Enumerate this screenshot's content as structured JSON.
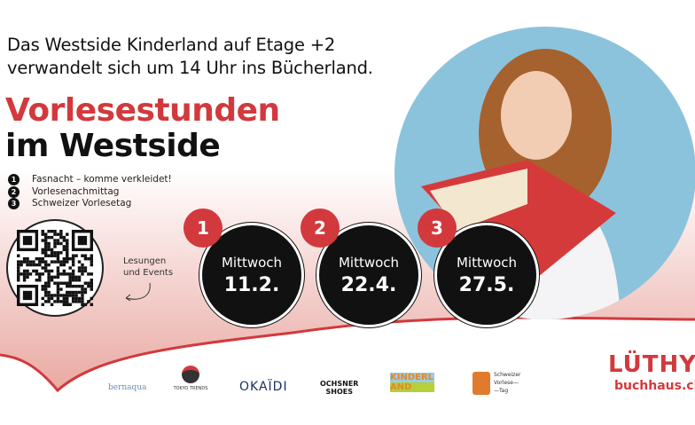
{
  "intro": {
    "line1": "Das Westside Kinderland auf Etage +2",
    "line2": "verwandelt sich um 14 Uhr ins Bücherland."
  },
  "title": {
    "line1": "Vorlesestunden",
    "line2": "im Westside"
  },
  "events": [
    {
      "num": "1",
      "label": "Fasnacht – komme verkleidet!",
      "weekday": "Mittwoch",
      "date": "11.2."
    },
    {
      "num": "2",
      "label": "Vorlesenachmittag",
      "weekday": "Mittwoch",
      "date": "22.4."
    },
    {
      "num": "3",
      "label": "Schweizer Vorlesetag",
      "weekday": "Mittwoch",
      "date": "27.5."
    }
  ],
  "qr": {
    "label1": "Lesungen",
    "label2": "und Events"
  },
  "sponsors": {
    "bernaqua": "bernaqua",
    "tokyo": "TOKYO TRENDS",
    "okaidi": "OKAÏDI",
    "ochsner1": "OCHSNER",
    "ochsner2": "SHOES",
    "kinderland": "KINDERLAND",
    "vorlesetag1": "Schweizer",
    "vorlesetag2": "Vorlese—",
    "vorlesetag3": "—Tag"
  },
  "brand": {
    "name": "LÜTHY",
    "domain": "buchhaus.ch"
  },
  "colors": {
    "accent": "#d2393d",
    "sky": "#8cc3dc"
  }
}
